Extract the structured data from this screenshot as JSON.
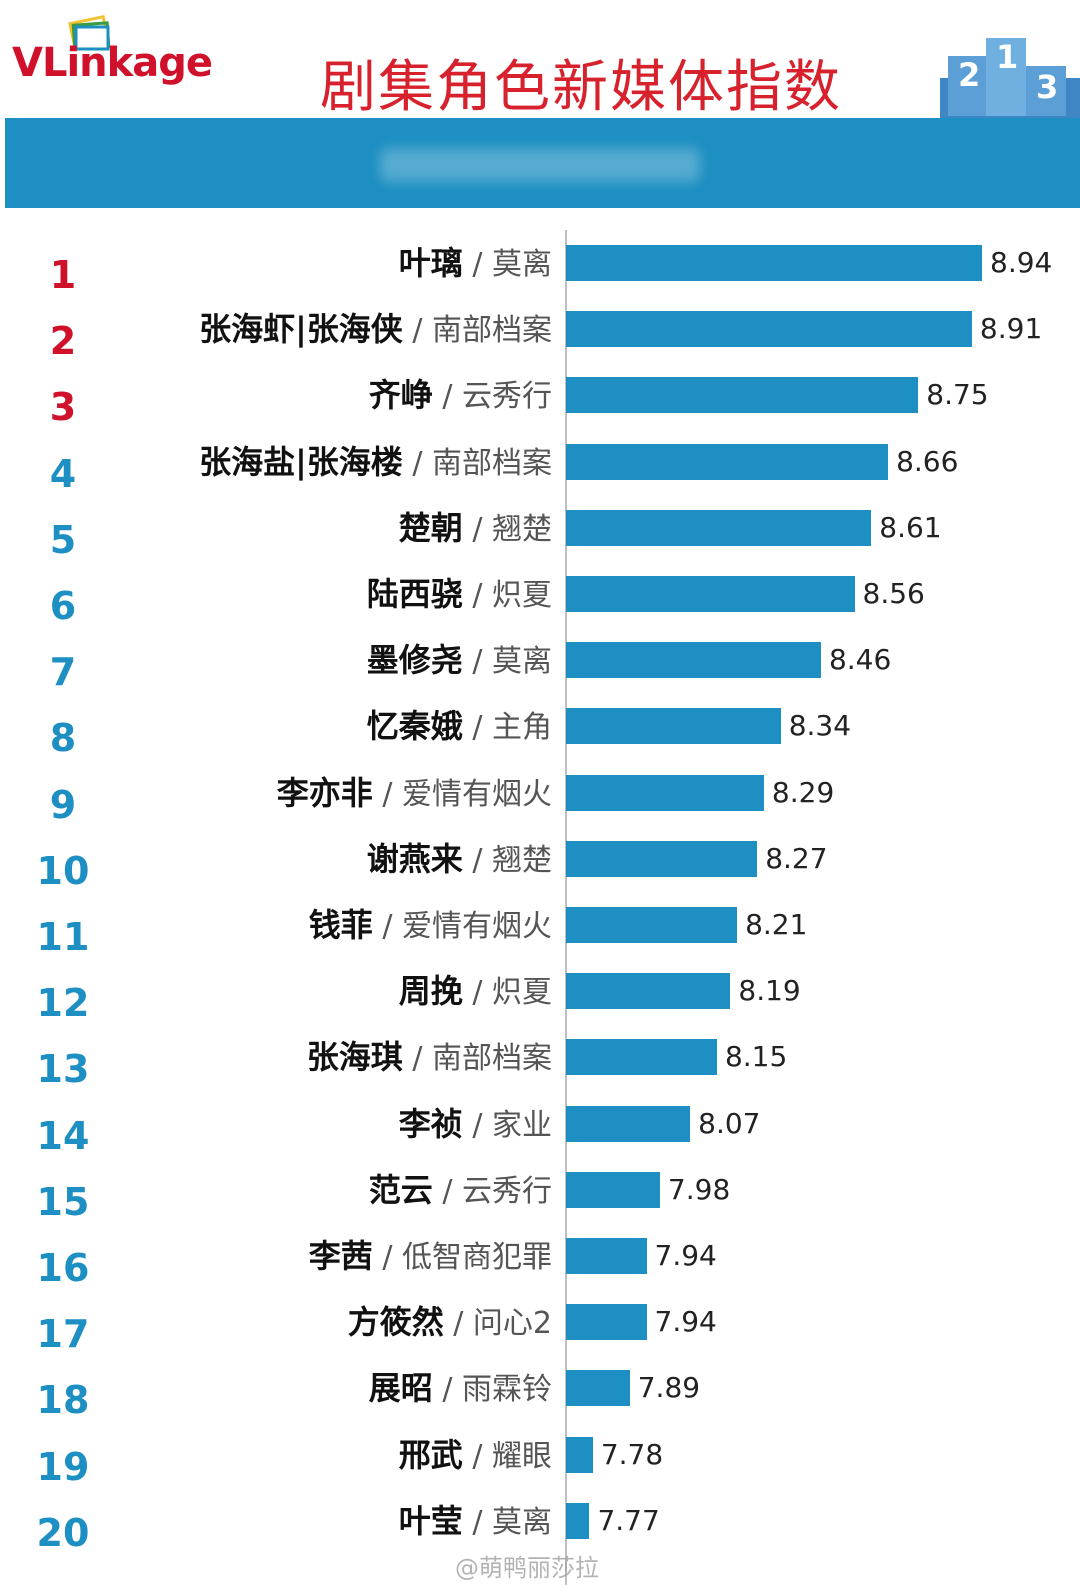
{
  "header": {
    "logo_text_v": "VLink",
    "logo_text_rest": "age",
    "title": "剧集角色新媒体指数"
  },
  "colors": {
    "bar": "#1d8fc2",
    "top_rank": "#d0112b",
    "rank": "#1d8fc2",
    "title": "#d7222e"
  },
  "watermark": "@萌鸭丽莎拉",
  "chart_data": {
    "type": "bar",
    "orientation": "horizontal",
    "xlim": [
      7.7,
      9.0
    ],
    "grid": false,
    "items": [
      {
        "rank": "1",
        "name": "叶璃",
        "show": "莫离",
        "value": 8.94,
        "value_label": "8.94"
      },
      {
        "rank": "2",
        "name": "张海虾|张海侠",
        "show": "南部档案",
        "value": 8.91,
        "value_label": "8.91"
      },
      {
        "rank": "3",
        "name": "齐峥",
        "show": "云秀行",
        "value": 8.75,
        "value_label": "8.75"
      },
      {
        "rank": "4",
        "name": "张海盐|张海楼",
        "show": "南部档案",
        "value": 8.66,
        "value_label": "8.66"
      },
      {
        "rank": "5",
        "name": "楚朝",
        "show": "翘楚",
        "value": 8.61,
        "value_label": "8.61"
      },
      {
        "rank": "6",
        "name": "陆西骁",
        "show": "炽夏",
        "value": 8.56,
        "value_label": "8.56"
      },
      {
        "rank": "7",
        "name": "墨修尧",
        "show": "莫离",
        "value": 8.46,
        "value_label": "8.46"
      },
      {
        "rank": "8",
        "name": "忆秦娥",
        "show": "主角",
        "value": 8.34,
        "value_label": "8.34"
      },
      {
        "rank": "9",
        "name": "李亦非",
        "show": "爱情有烟火",
        "value": 8.29,
        "value_label": "8.29"
      },
      {
        "rank": "10",
        "name": "谢燕来",
        "show": "翘楚",
        "value": 8.27,
        "value_label": "8.27"
      },
      {
        "rank": "11",
        "name": "钱菲",
        "show": "爱情有烟火",
        "value": 8.21,
        "value_label": "8.21"
      },
      {
        "rank": "12",
        "name": "周挽",
        "show": "炽夏",
        "value": 8.19,
        "value_label": "8.19"
      },
      {
        "rank": "13",
        "name": "张海琪",
        "show": "南部档案",
        "value": 8.15,
        "value_label": "8.15"
      },
      {
        "rank": "14",
        "name": "李祯",
        "show": "家业",
        "value": 8.07,
        "value_label": "8.07"
      },
      {
        "rank": "15",
        "name": "范云",
        "show": "云秀行",
        "value": 7.98,
        "value_label": "7.98"
      },
      {
        "rank": "16",
        "name": "李茜",
        "show": "低智商犯罪",
        "value": 7.94,
        "value_label": "7.94"
      },
      {
        "rank": "17",
        "name": "方筱然",
        "show": "问心2",
        "value": 7.94,
        "value_label": "7.94"
      },
      {
        "rank": "18",
        "name": "展昭",
        "show": "雨霖铃",
        "value": 7.89,
        "value_label": "7.89"
      },
      {
        "rank": "19",
        "name": "邢武",
        "show": "耀眼",
        "value": 7.78,
        "value_label": "7.78"
      },
      {
        "rank": "20",
        "name": "叶莹",
        "show": "莫离",
        "value": 7.77,
        "value_label": "7.77"
      }
    ]
  }
}
